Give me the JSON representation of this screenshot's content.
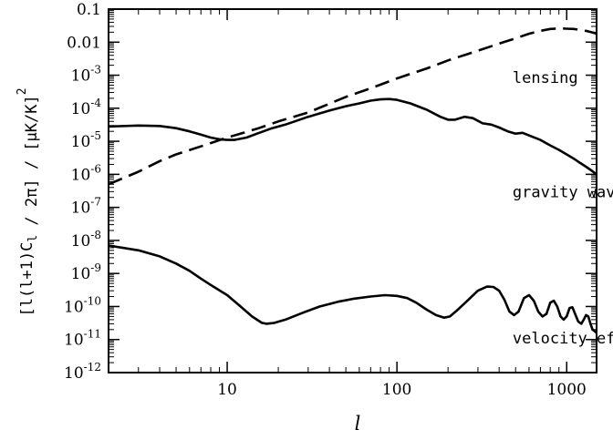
{
  "chart_data": {
    "type": "line",
    "title": "",
    "xlabel": "l",
    "ylabel": "[l(l+1)C_l / 2π] / [μK/K]²",
    "x_scale": "log",
    "y_scale": "log",
    "xlim": [
      2,
      1500
    ],
    "ylim": [
      1e-12,
      0.1
    ],
    "grid": false,
    "x_ticks": [
      {
        "value": 10,
        "label": "10"
      },
      {
        "value": 100,
        "label": "100"
      },
      {
        "value": 1000,
        "label": "1000"
      }
    ],
    "y_ticks": [
      {
        "value": 0.1,
        "base": "0.1",
        "exp": ""
      },
      {
        "value": 0.01,
        "base": "0.01",
        "exp": ""
      },
      {
        "value": 0.001,
        "base": "10",
        "exp": "-3"
      },
      {
        "value": 0.0001,
        "base": "10",
        "exp": "-4"
      },
      {
        "value": 1e-05,
        "base": "10",
        "exp": "-5"
      },
      {
        "value": 1e-06,
        "base": "10",
        "exp": "-6"
      },
      {
        "value": 1e-07,
        "base": "10",
        "exp": "-7"
      },
      {
        "value": 1e-08,
        "base": "10",
        "exp": "-8"
      },
      {
        "value": 1e-09,
        "base": "10",
        "exp": "-9"
      },
      {
        "value": 1e-10,
        "base": "10",
        "exp": "-10"
      },
      {
        "value": 1e-11,
        "base": "10",
        "exp": "-11"
      },
      {
        "value": 1e-12,
        "base": "10",
        "exp": "-12"
      }
    ],
    "series": [
      {
        "name": "lensing",
        "style": "dashed",
        "points": [
          [
            2,
            5e-07
          ],
          [
            3,
            1.2e-06
          ],
          [
            4,
            2.5e-06
          ],
          [
            5,
            4e-06
          ],
          [
            7,
            7e-06
          ],
          [
            10,
            1.3e-05
          ],
          [
            15,
            2.4e-05
          ],
          [
            20,
            4e-05
          ],
          [
            30,
            7.5e-05
          ],
          [
            50,
            0.00022
          ],
          [
            70,
            0.0004
          ],
          [
            100,
            0.0008
          ],
          [
            150,
            0.0016
          ],
          [
            200,
            0.0028
          ],
          [
            300,
            0.0055
          ],
          [
            400,
            0.009
          ],
          [
            500,
            0.013
          ],
          [
            600,
            0.018
          ],
          [
            700,
            0.022
          ],
          [
            800,
            0.025
          ],
          [
            900,
            0.026
          ],
          [
            1000,
            0.0255
          ],
          [
            1100,
            0.025
          ],
          [
            1200,
            0.0235
          ],
          [
            1300,
            0.022
          ],
          [
            1400,
            0.02
          ],
          [
            1500,
            0.018
          ]
        ]
      },
      {
        "name": "gravity waves",
        "style": "solid",
        "points": [
          [
            2,
            2.8e-05
          ],
          [
            3,
            3e-05
          ],
          [
            4,
            2.9e-05
          ],
          [
            5,
            2.5e-05
          ],
          [
            6,
            2e-05
          ],
          [
            7,
            1.6e-05
          ],
          [
            8,
            1.3e-05
          ],
          [
            9,
            1.15e-05
          ],
          [
            10,
            1.1e-05
          ],
          [
            11,
            1.1e-05
          ],
          [
            13,
            1.3e-05
          ],
          [
            15,
            1.7e-05
          ],
          [
            18,
            2.4e-05
          ],
          [
            22,
            3.2e-05
          ],
          [
            30,
            5.5e-05
          ],
          [
            40,
            8.5e-05
          ],
          [
            50,
            0.000115
          ],
          [
            60,
            0.00014
          ],
          [
            70,
            0.00017
          ],
          [
            80,
            0.000185
          ],
          [
            90,
            0.00019
          ],
          [
            100,
            0.00018
          ],
          [
            120,
            0.00014
          ],
          [
            150,
            9e-05
          ],
          [
            180,
            5.5e-05
          ],
          [
            200,
            4.5e-05
          ],
          [
            220,
            4.5e-05
          ],
          [
            250,
            5.5e-05
          ],
          [
            280,
            5e-05
          ],
          [
            320,
            3.5e-05
          ],
          [
            360,
            3.2e-05
          ],
          [
            400,
            2.6e-05
          ],
          [
            450,
            2e-05
          ],
          [
            500,
            1.7e-05
          ],
          [
            550,
            1.8e-05
          ],
          [
            600,
            1.5e-05
          ],
          [
            700,
            1.1e-05
          ],
          [
            800,
            7.5e-06
          ],
          [
            900,
            5.5e-06
          ],
          [
            1000,
            4e-06
          ],
          [
            1100,
            3e-06
          ],
          [
            1200,
            2.2e-06
          ],
          [
            1300,
            1.7e-06
          ],
          [
            1400,
            1.3e-06
          ],
          [
            1500,
            1e-06
          ]
        ]
      },
      {
        "name": "velocity effect",
        "style": "solid",
        "points": [
          [
            2,
            7e-09
          ],
          [
            3,
            5e-09
          ],
          [
            4,
            3.3e-09
          ],
          [
            5,
            2e-09
          ],
          [
            6,
            1.2e-09
          ],
          [
            7,
            7e-10
          ],
          [
            8,
            4.5e-10
          ],
          [
            10,
            2.2e-10
          ],
          [
            12,
            1e-10
          ],
          [
            14,
            5e-11
          ],
          [
            16,
            3.2e-11
          ],
          [
            17,
            3e-11
          ],
          [
            19,
            3.2e-11
          ],
          [
            22,
            4e-11
          ],
          [
            28,
            6.5e-11
          ],
          [
            35,
            1e-10
          ],
          [
            45,
            1.4e-10
          ],
          [
            55,
            1.7e-10
          ],
          [
            70,
            2e-10
          ],
          [
            85,
            2.2e-10
          ],
          [
            100,
            2.1e-10
          ],
          [
            115,
            1.8e-10
          ],
          [
            130,
            1.3e-10
          ],
          [
            150,
            8e-11
          ],
          [
            170,
            5.5e-11
          ],
          [
            190,
            4.6e-11
          ],
          [
            205,
            5e-11
          ],
          [
            225,
            7.5e-11
          ],
          [
            260,
            1.5e-10
          ],
          [
            300,
            3e-10
          ],
          [
            340,
            4e-10
          ],
          [
            370,
            3.9e-10
          ],
          [
            400,
            3e-10
          ],
          [
            430,
            1.6e-10
          ],
          [
            460,
            7e-11
          ],
          [
            490,
            5.5e-11
          ],
          [
            520,
            7e-11
          ],
          [
            560,
            1.8e-10
          ],
          [
            600,
            2.2e-10
          ],
          [
            640,
            1.5e-10
          ],
          [
            680,
            7e-11
          ],
          [
            720,
            5e-11
          ],
          [
            760,
            6e-11
          ],
          [
            800,
            1.3e-10
          ],
          [
            840,
            1.5e-10
          ],
          [
            880,
            1e-10
          ],
          [
            920,
            5e-11
          ],
          [
            960,
            4e-11
          ],
          [
            1000,
            5e-11
          ],
          [
            1040,
            9e-11
          ],
          [
            1080,
            9.5e-11
          ],
          [
            1120,
            6e-11
          ],
          [
            1170,
            3.5e-11
          ],
          [
            1220,
            3e-11
          ],
          [
            1260,
            4e-11
          ],
          [
            1300,
            5.5e-11
          ],
          [
            1340,
            5e-11
          ],
          [
            1380,
            3e-11
          ],
          [
            1420,
            2e-11
          ],
          [
            1460,
            1.8e-11
          ],
          [
            1500,
            1.6e-11
          ]
        ]
      }
    ],
    "annotations": [
      {
        "text": "lensing",
        "x": 480,
        "y": 0.00085
      },
      {
        "text": "gravity waves",
        "x": 480,
        "y": 3e-07
      },
      {
        "text": "velocity effect",
        "x": 480,
        "y": 1.1e-11
      }
    ]
  }
}
